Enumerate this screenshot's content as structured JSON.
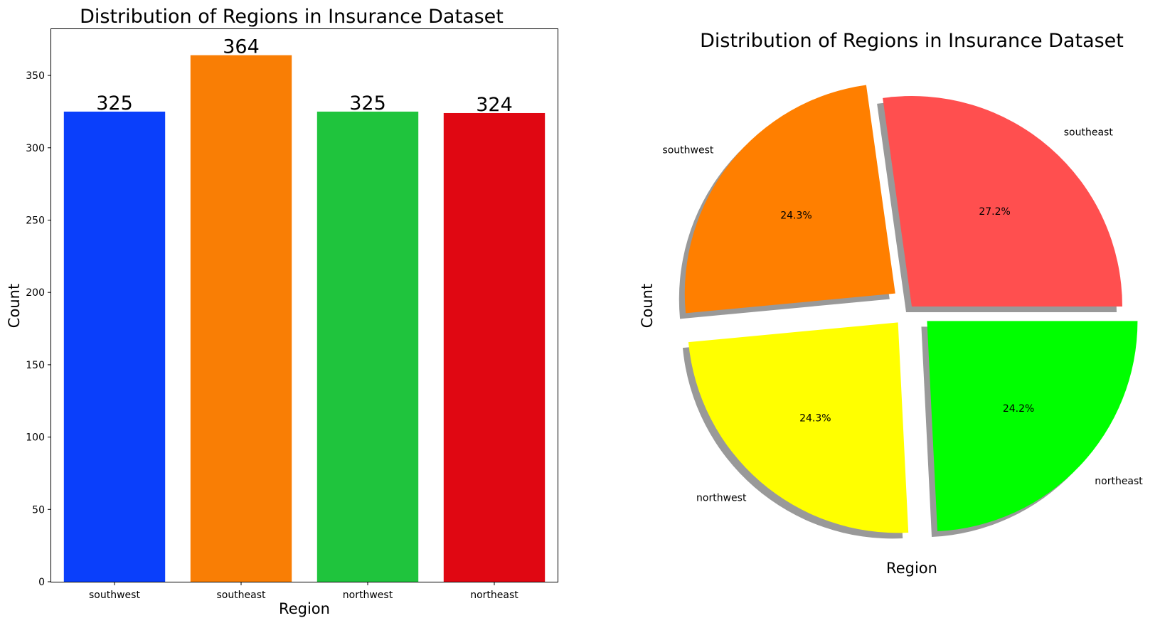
{
  "chart_data": [
    {
      "type": "bar",
      "title": "Distribution of Regions in Insurance Dataset",
      "xlabel": "Region",
      "ylabel": "Count",
      "categories": [
        "southwest",
        "southeast",
        "northwest",
        "northeast"
      ],
      "values": [
        325,
        364,
        325,
        324
      ],
      "value_labels": [
        "325",
        "364",
        "325",
        "324"
      ],
      "colors": [
        "#0a3ffb",
        "#f97e05",
        "#1fc43d",
        "#e00712"
      ],
      "ylim": [
        0,
        382
      ],
      "yticks": [
        0,
        50,
        100,
        150,
        200,
        250,
        300,
        350
      ],
      "ytick_labels": [
        "0",
        "50",
        "100",
        "150",
        "200",
        "250",
        "300",
        "350"
      ],
      "grid": false,
      "legend": "none"
    },
    {
      "type": "pie",
      "title": "Distribution of Regions in Insurance Dataset",
      "xlabel": "Region",
      "ylabel": "Count",
      "labels": [
        "southeast",
        "southwest",
        "northwest",
        "northeast"
      ],
      "values": [
        364,
        325,
        325,
        324
      ],
      "pct_labels": [
        "27.2%",
        "24.3%",
        "24.3%",
        "24.2%"
      ],
      "colors": [
        "#ff4f4f",
        "#ff7f00",
        "#ffff00",
        "#00ff00"
      ],
      "explode": [
        0.0,
        0.1,
        0.1,
        0.1
      ],
      "start_angle": 0,
      "counterclockwise": true,
      "shadow": true,
      "legend": "none"
    }
  ]
}
